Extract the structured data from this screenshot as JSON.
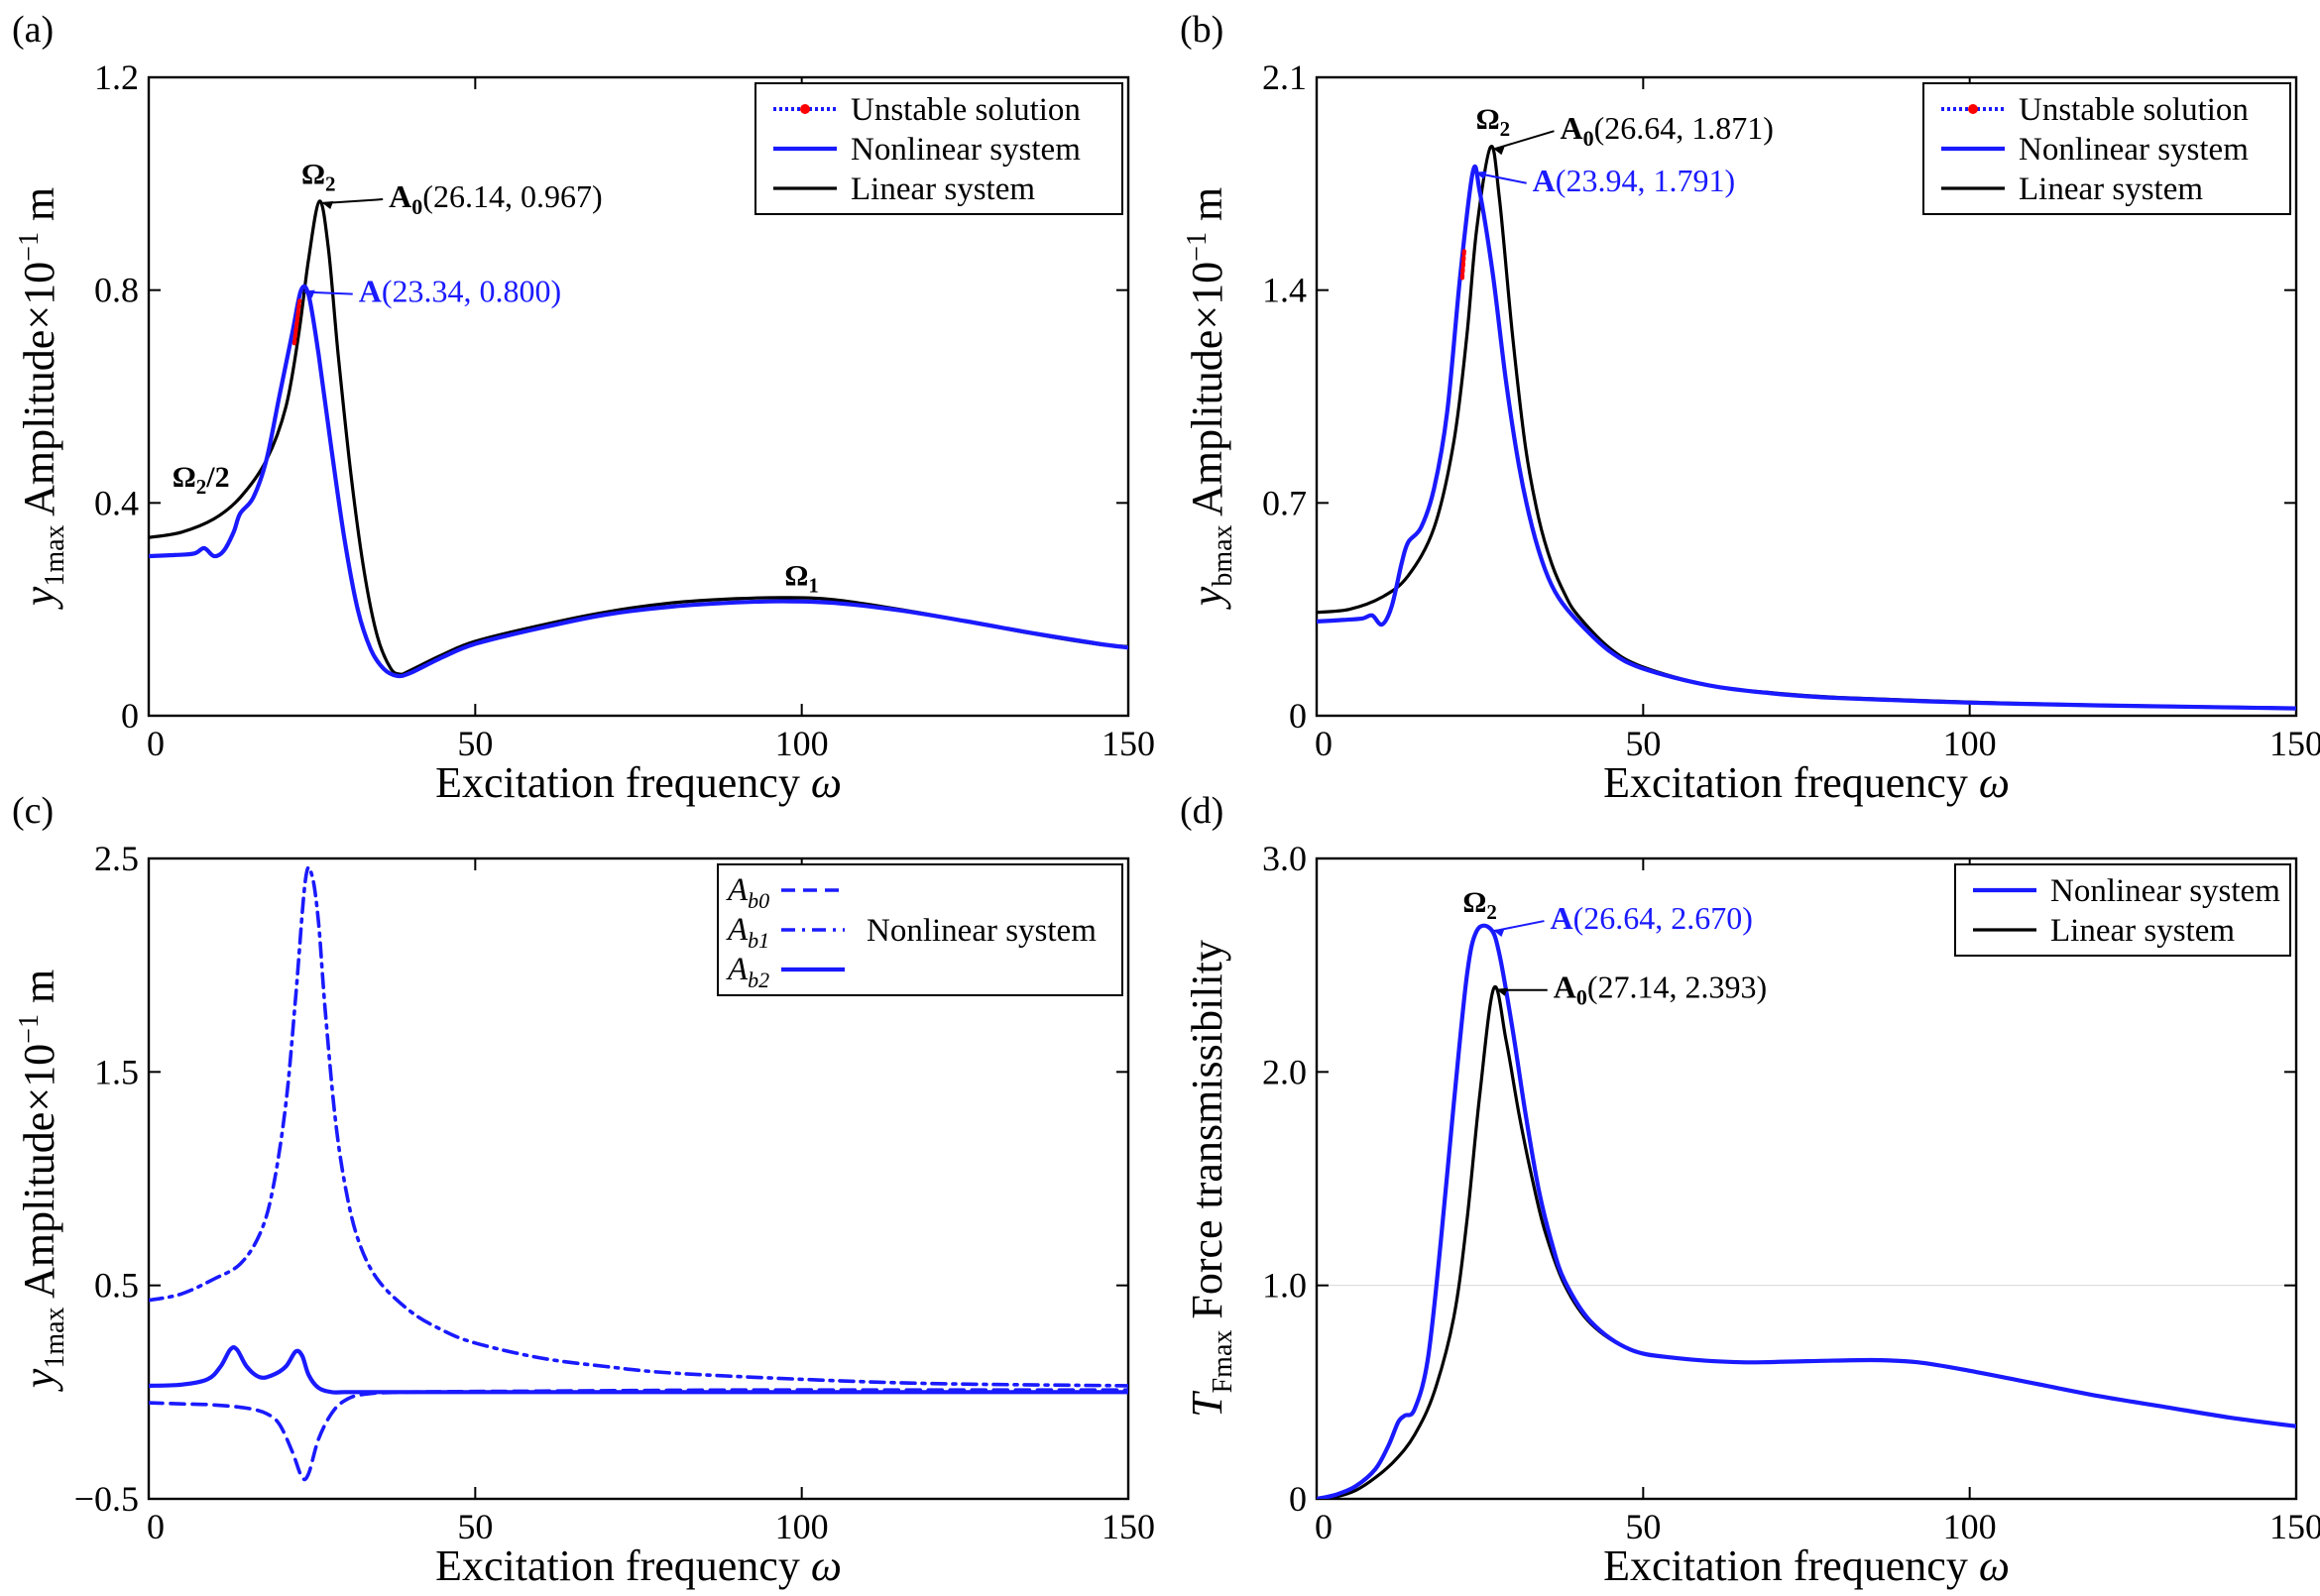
{
  "figure": {
    "colors": {
      "blue": "#1a1aff",
      "black": "#000000",
      "red": "#ff0000"
    }
  },
  "chart_data": [
    {
      "panel_label": "(a)",
      "type": "line",
      "xlabel_text": "Excitation frequency",
      "xlabel_symbol": "ω",
      "ylabel_var": "y",
      "ylabel_sub": "1max",
      "ylabel_text": "Amplitude×10",
      "ylabel_exp": "−1",
      "ylabel_unit": "m",
      "xlim": [
        0,
        150
      ],
      "ylim": [
        0,
        1.2
      ],
      "xticks": [
        0,
        50,
        100,
        150
      ],
      "xtick_labels": [
        "0",
        "50",
        "100",
        "150"
      ],
      "yticks": [
        0,
        0.4,
        0.8,
        1.2
      ],
      "ytick_labels": [
        "0",
        "0.4",
        "0.8",
        "1.2"
      ],
      "legend": [
        {
          "label": "Unstable solution",
          "style": "unstable"
        },
        {
          "label": "Nonlinear system",
          "style": "blue"
        },
        {
          "label": "Linear system",
          "style": "black"
        }
      ],
      "series": [
        {
          "name": "Linear system",
          "style": "black",
          "x": [
            0,
            5,
            10,
            14,
            18,
            21,
            23,
            24.5,
            26.14,
            27.5,
            29,
            31,
            33,
            35,
            37,
            38.5,
            40,
            45,
            50,
            60,
            70,
            80,
            90,
            98,
            105,
            115,
            125,
            135,
            145,
            150
          ],
          "y": [
            0.335,
            0.345,
            0.37,
            0.41,
            0.48,
            0.58,
            0.72,
            0.86,
            0.967,
            0.88,
            0.68,
            0.45,
            0.27,
            0.15,
            0.09,
            0.078,
            0.085,
            0.115,
            0.14,
            0.17,
            0.195,
            0.212,
            0.22,
            0.222,
            0.218,
            0.2,
            0.178,
            0.155,
            0.135,
            0.13
          ]
        },
        {
          "name": "Nonlinear system",
          "style": "blue",
          "x": [
            0,
            4,
            7,
            8.5,
            10,
            11.5,
            13,
            14,
            16,
            18,
            20,
            22,
            23.34,
            24.5,
            26,
            28,
            30,
            32,
            34,
            36,
            38,
            40,
            45,
            50,
            60,
            70,
            80,
            90,
            98,
            105,
            115,
            125,
            135,
            145,
            150
          ],
          "y": [
            0.3,
            0.302,
            0.305,
            0.315,
            0.3,
            0.31,
            0.345,
            0.38,
            0.41,
            0.48,
            0.6,
            0.72,
            0.8,
            0.79,
            0.68,
            0.5,
            0.33,
            0.2,
            0.125,
            0.088,
            0.075,
            0.08,
            0.11,
            0.135,
            0.165,
            0.19,
            0.205,
            0.213,
            0.215,
            0.212,
            0.198,
            0.178,
            0.156,
            0.136,
            0.128
          ]
        },
        {
          "name": "Unstable solution",
          "style": "unstable",
          "x": [
            22.3,
            22.5,
            22.7,
            22.9,
            23.1
          ],
          "y": [
            0.7,
            0.72,
            0.74,
            0.76,
            0.78
          ]
        }
      ],
      "annotations": [
        {
          "bold": "A",
          "sub": "0",
          "text": "(26.14, 0.967)",
          "x": 26.14,
          "y": 0.967,
          "color": "black"
        },
        {
          "bold": "A",
          "sub": "",
          "text": "(23.34, 0.800)",
          "x": 23.34,
          "y": 0.8,
          "color": "blue"
        }
      ],
      "peak_labels": [
        {
          "base": "Ω",
          "sub": "2",
          "after": "",
          "x": 26,
          "y": 1.0
        },
        {
          "base": "Ω",
          "sub": "2",
          "after": "/2",
          "x": 8,
          "y": 0.43
        },
        {
          "base": "Ω",
          "sub": "1",
          "after": "",
          "x": 100,
          "y": 0.245
        }
      ]
    },
    {
      "panel_label": "(b)",
      "type": "line",
      "xlabel_text": "Excitation frequency",
      "xlabel_symbol": "ω",
      "ylabel_var": "y",
      "ylabel_sub": "bmax",
      "ylabel_text": "Amplitude×10",
      "ylabel_exp": "−1",
      "ylabel_unit": "m",
      "xlim": [
        0,
        150
      ],
      "ylim": [
        0,
        2.1
      ],
      "xticks": [
        0,
        50,
        100,
        150
      ],
      "xtick_labels": [
        "0",
        "50",
        "100",
        "150"
      ],
      "yticks": [
        0,
        0.7,
        1.4,
        2.1
      ],
      "ytick_labels": [
        "0",
        "0.7",
        "1.4",
        "2.1"
      ],
      "legend": [
        {
          "label": "Unstable solution",
          "style": "unstable"
        },
        {
          "label": "Nonlinear system",
          "style": "blue"
        },
        {
          "label": "Linear system",
          "style": "black"
        }
      ],
      "series": [
        {
          "name": "Linear system",
          "style": "black",
          "x": [
            0,
            5,
            10,
            14,
            18,
            21,
            23,
            24.5,
            26.64,
            28,
            30,
            32,
            34,
            36,
            38,
            40,
            45,
            50,
            60,
            70,
            80,
            100,
            120,
            150
          ],
          "y": [
            0.34,
            0.35,
            0.39,
            0.46,
            0.62,
            0.9,
            1.25,
            1.6,
            1.871,
            1.7,
            1.25,
            0.88,
            0.65,
            0.5,
            0.4,
            0.33,
            0.22,
            0.16,
            0.1,
            0.075,
            0.06,
            0.045,
            0.035,
            0.025
          ]
        },
        {
          "name": "Nonlinear system",
          "style": "blue",
          "x": [
            0,
            4,
            7,
            8.5,
            10,
            11.5,
            13,
            14,
            16,
            18,
            20,
            22,
            23.94,
            25,
            27,
            29,
            31,
            33,
            35,
            37,
            40,
            45,
            50,
            60,
            70,
            80,
            100,
            120,
            150
          ],
          "y": [
            0.31,
            0.315,
            0.32,
            0.33,
            0.3,
            0.36,
            0.5,
            0.57,
            0.62,
            0.75,
            1.0,
            1.45,
            1.791,
            1.72,
            1.45,
            1.1,
            0.82,
            0.62,
            0.48,
            0.39,
            0.31,
            0.21,
            0.155,
            0.1,
            0.073,
            0.058,
            0.043,
            0.034,
            0.024
          ]
        },
        {
          "name": "Unstable solution",
          "style": "unstable",
          "x": [
            22.3,
            22.4,
            22.5,
            22.6
          ],
          "y": [
            1.44,
            1.47,
            1.5,
            1.53
          ]
        }
      ],
      "annotations": [
        {
          "bold": "A",
          "sub": "0",
          "text": "(26.64, 1.871)",
          "x": 26.64,
          "y": 1.871,
          "color": "black"
        },
        {
          "bold": "A",
          "sub": "",
          "text": "(23.94, 1.791)",
          "x": 23.94,
          "y": 1.791,
          "color": "blue"
        }
      ],
      "peak_labels": [
        {
          "base": "Ω",
          "sub": "2",
          "after": "",
          "x": 27,
          "y": 1.93
        }
      ]
    },
    {
      "panel_label": "(c)",
      "type": "line",
      "xlabel_text": "Excitation frequency",
      "xlabel_symbol": "ω",
      "ylabel_var": "y",
      "ylabel_sub": "1max",
      "ylabel_text": "Amplitude×10",
      "ylabel_exp": "−1",
      "ylabel_unit": "m",
      "xlim": [
        0,
        150
      ],
      "ylim": [
        -0.5,
        2.5
      ],
      "xticks": [
        0,
        50,
        100,
        150
      ],
      "xtick_labels": [
        "0",
        "50",
        "100",
        "150"
      ],
      "yticks": [
        -0.5,
        0.5,
        1.5,
        2.5
      ],
      "ytick_labels": [
        "−0.5",
        "0.5",
        "1.5",
        "2.5"
      ],
      "legend_group_label": "Nonlinear system",
      "legend": [
        {
          "label": "A",
          "sub": "b0",
          "style": "dash"
        },
        {
          "label": "A",
          "sub": "b1",
          "style": "dashdot"
        },
        {
          "label": "A",
          "sub": "b2",
          "style": "solid"
        }
      ],
      "series": [
        {
          "name": "Ab0",
          "style": "dash",
          "x": [
            0,
            5,
            10,
            15,
            18,
            20,
            22,
            23.5,
            24.5,
            26,
            28,
            30,
            33,
            40,
            60,
            90,
            120,
            150
          ],
          "y": [
            -0.05,
            -0.055,
            -0.06,
            -0.075,
            -0.1,
            -0.15,
            -0.28,
            -0.4,
            -0.38,
            -0.22,
            -0.1,
            -0.04,
            -0.01,
            0.0,
            0.005,
            0.01,
            0.01,
            0.01
          ]
        },
        {
          "name": "Ab1",
          "style": "dashdot",
          "x": [
            0,
            5,
            10,
            14,
            17,
            19,
            21,
            22.5,
            24,
            25,
            26,
            27,
            28.5,
            30,
            32,
            35,
            40,
            45,
            50,
            60,
            70,
            80,
            100,
            120,
            150
          ],
          "y": [
            0.43,
            0.46,
            0.53,
            0.6,
            0.74,
            0.95,
            1.35,
            1.85,
            2.4,
            2.42,
            2.2,
            1.8,
            1.3,
            0.98,
            0.72,
            0.53,
            0.38,
            0.29,
            0.23,
            0.16,
            0.12,
            0.09,
            0.06,
            0.04,
            0.03
          ]
        },
        {
          "name": "Ab2",
          "style": "solid",
          "x": [
            0,
            5,
            9,
            11,
            12.5,
            13.5,
            15,
            17,
            19,
            21,
            22.5,
            23.5,
            24.5,
            26,
            28,
            30,
            33,
            40,
            60,
            100,
            150
          ],
          "y": [
            0.03,
            0.035,
            0.06,
            0.12,
            0.2,
            0.2,
            0.12,
            0.07,
            0.08,
            0.12,
            0.19,
            0.17,
            0.08,
            0.02,
            0.0,
            0.0,
            0.0,
            0.0,
            0.0,
            0.0,
            0.0
          ]
        }
      ],
      "annotations": [],
      "peak_labels": []
    },
    {
      "panel_label": "(d)",
      "type": "line",
      "xlabel_text": "Excitation frequency",
      "xlabel_symbol": "ω",
      "ylabel_var": "T",
      "ylabel_sub": "Fmax",
      "ylabel_text": "Force transmissibility",
      "ylabel_exp": "",
      "ylabel_unit": "",
      "xlim": [
        0,
        150
      ],
      "ylim": [
        0,
        3.0
      ],
      "xticks": [
        0,
        50,
        100,
        150
      ],
      "xtick_labels": [
        "0",
        "50",
        "100",
        "150"
      ],
      "yticks": [
        0,
        1.0,
        2.0,
        3.0
      ],
      "ytick_labels": [
        "0",
        "1.0",
        "2.0",
        "3.0"
      ],
      "legend": [
        {
          "label": "Nonlinear system",
          "style": "blue"
        },
        {
          "label": "Linear system",
          "style": "black"
        }
      ],
      "series": [
        {
          "name": "Linear system",
          "style": "black",
          "x": [
            0,
            3,
            6,
            9,
            12,
            15,
            18,
            21,
            23,
            25,
            27.14,
            29,
            31,
            33,
            35,
            38,
            42,
            48,
            55,
            65,
            75,
            85,
            92,
            100,
            110,
            120,
            130,
            140,
            150
          ],
          "y": [
            0.0,
            0.01,
            0.04,
            0.1,
            0.18,
            0.3,
            0.5,
            0.85,
            1.3,
            1.9,
            2.393,
            2.15,
            1.8,
            1.5,
            1.25,
            1.0,
            0.82,
            0.7,
            0.66,
            0.64,
            0.645,
            0.65,
            0.64,
            0.6,
            0.54,
            0.48,
            0.43,
            0.38,
            0.34
          ]
        },
        {
          "name": "Nonlinear system",
          "style": "blue",
          "x": [
            0,
            3,
            6,
            9,
            11,
            12.5,
            13.5,
            15,
            17,
            19,
            21,
            23,
            24.5,
            26.64,
            28,
            30,
            32,
            34,
            36,
            38,
            42,
            48,
            55,
            65,
            75,
            85,
            92,
            100,
            110,
            120,
            130,
            140,
            150
          ],
          "y": [
            0.0,
            0.02,
            0.06,
            0.14,
            0.25,
            0.36,
            0.39,
            0.42,
            0.65,
            1.2,
            1.85,
            2.45,
            2.66,
            2.67,
            2.55,
            2.2,
            1.8,
            1.45,
            1.2,
            1.02,
            0.83,
            0.7,
            0.66,
            0.64,
            0.645,
            0.65,
            0.64,
            0.6,
            0.54,
            0.48,
            0.43,
            0.38,
            0.34
          ]
        }
      ],
      "annotations": [
        {
          "bold": "A",
          "sub": "",
          "text": "(26.64, 2.670)",
          "x": 26.64,
          "y": 2.67,
          "color": "blue"
        },
        {
          "bold": "A",
          "sub": "0",
          "text": "(27.14, 2.393)",
          "x": 27.14,
          "y": 2.393,
          "color": "black"
        }
      ],
      "peak_labels": [
        {
          "base": "Ω",
          "sub": "2",
          "after": "",
          "x": 25,
          "y": 2.75
        }
      ]
    }
  ]
}
